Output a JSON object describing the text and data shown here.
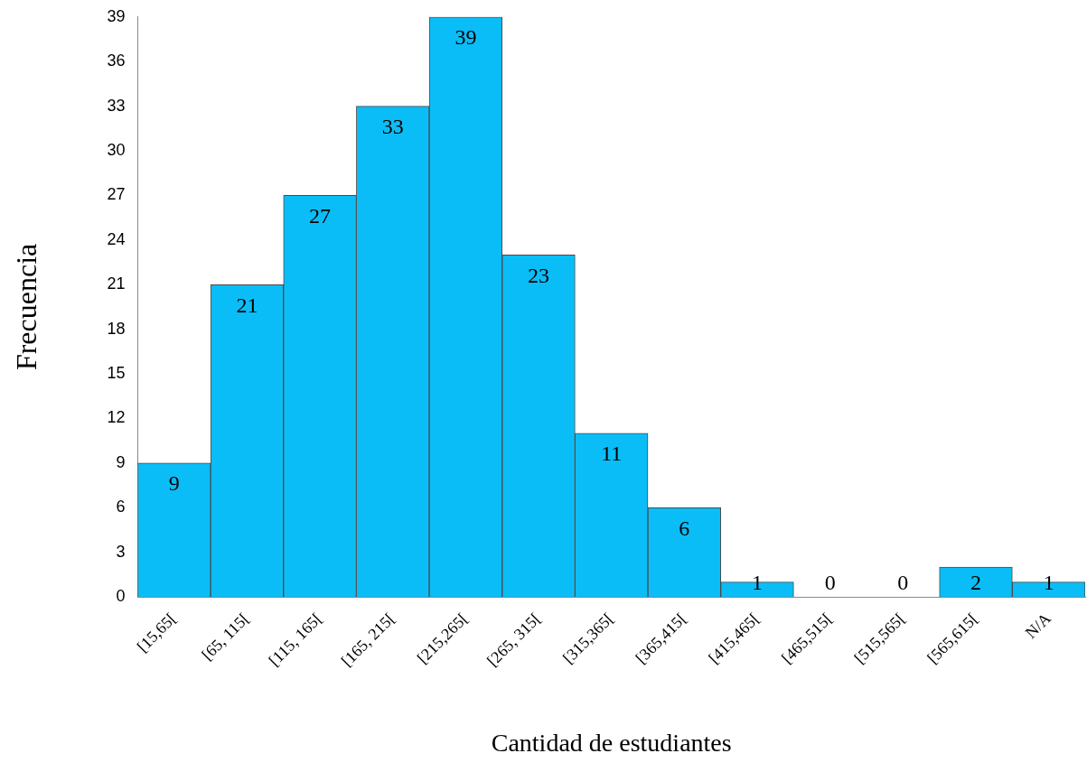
{
  "chart_data": {
    "type": "bar",
    "xlabel": "Cantidad de estudiantes",
    "ylabel": "Frecuencia",
    "categories": [
      "[15,65[",
      "[65, 115[",
      "[115, 165[",
      "[165, 215[",
      "[215,265[",
      "[265, 315[",
      "[315,365[",
      "[365,415[",
      "[415,465[",
      "[465,515[",
      "[515,565[",
      "[565,615[",
      "N/A"
    ],
    "values": [
      9,
      21,
      27,
      33,
      39,
      23,
      11,
      6,
      1,
      0,
      0,
      2,
      1
    ],
    "color": "#0bbdf7",
    "ylim": [
      0,
      39
    ],
    "yticks": [
      0,
      3,
      6,
      9,
      12,
      15,
      18,
      21,
      24,
      27,
      30,
      33,
      36,
      39
    ],
    "grid": false,
    "legend": false,
    "data_labels": true
  }
}
